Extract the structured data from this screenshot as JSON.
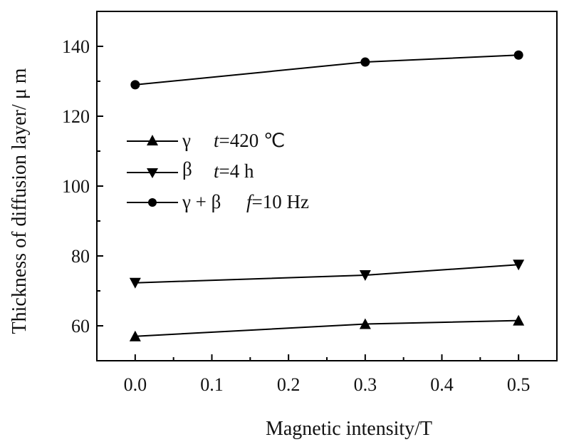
{
  "chart_data": {
    "type": "line",
    "xlabel": "Magnetic intensity/T",
    "ylabel": "Thickness of diffusion layer/ μ m",
    "xlim": [
      -0.05,
      0.55
    ],
    "ylim": [
      50,
      150
    ],
    "x_ticks": [
      "0.0",
      "0.1",
      "0.2",
      "0.3",
      "0.4",
      "0.5"
    ],
    "y_ticks": [
      "60",
      "80",
      "100",
      "120",
      "140"
    ],
    "grid": false,
    "legend_position": "center-left",
    "series": [
      {
        "name": "γ",
        "marker": "triangle-up",
        "x": [
          0.0,
          0.3,
          0.5
        ],
        "values": [
          57,
          60.5,
          61.5
        ]
      },
      {
        "name": "β",
        "marker": "triangle-down",
        "x": [
          0.0,
          0.3,
          0.5
        ],
        "values": [
          72.3,
          74.5,
          77.5
        ]
      },
      {
        "name": "γ + β",
        "marker": "circle",
        "x": [
          0.0,
          0.3,
          0.5
        ],
        "values": [
          129,
          135.5,
          137.5
        ]
      }
    ],
    "annotations": {
      "temperature": {
        "var": "t",
        "value": "=420 ℃"
      },
      "time": {
        "var": "t",
        "value": "=4 h"
      },
      "frequency": {
        "var": "f",
        "value": "=10 Hz"
      }
    }
  }
}
